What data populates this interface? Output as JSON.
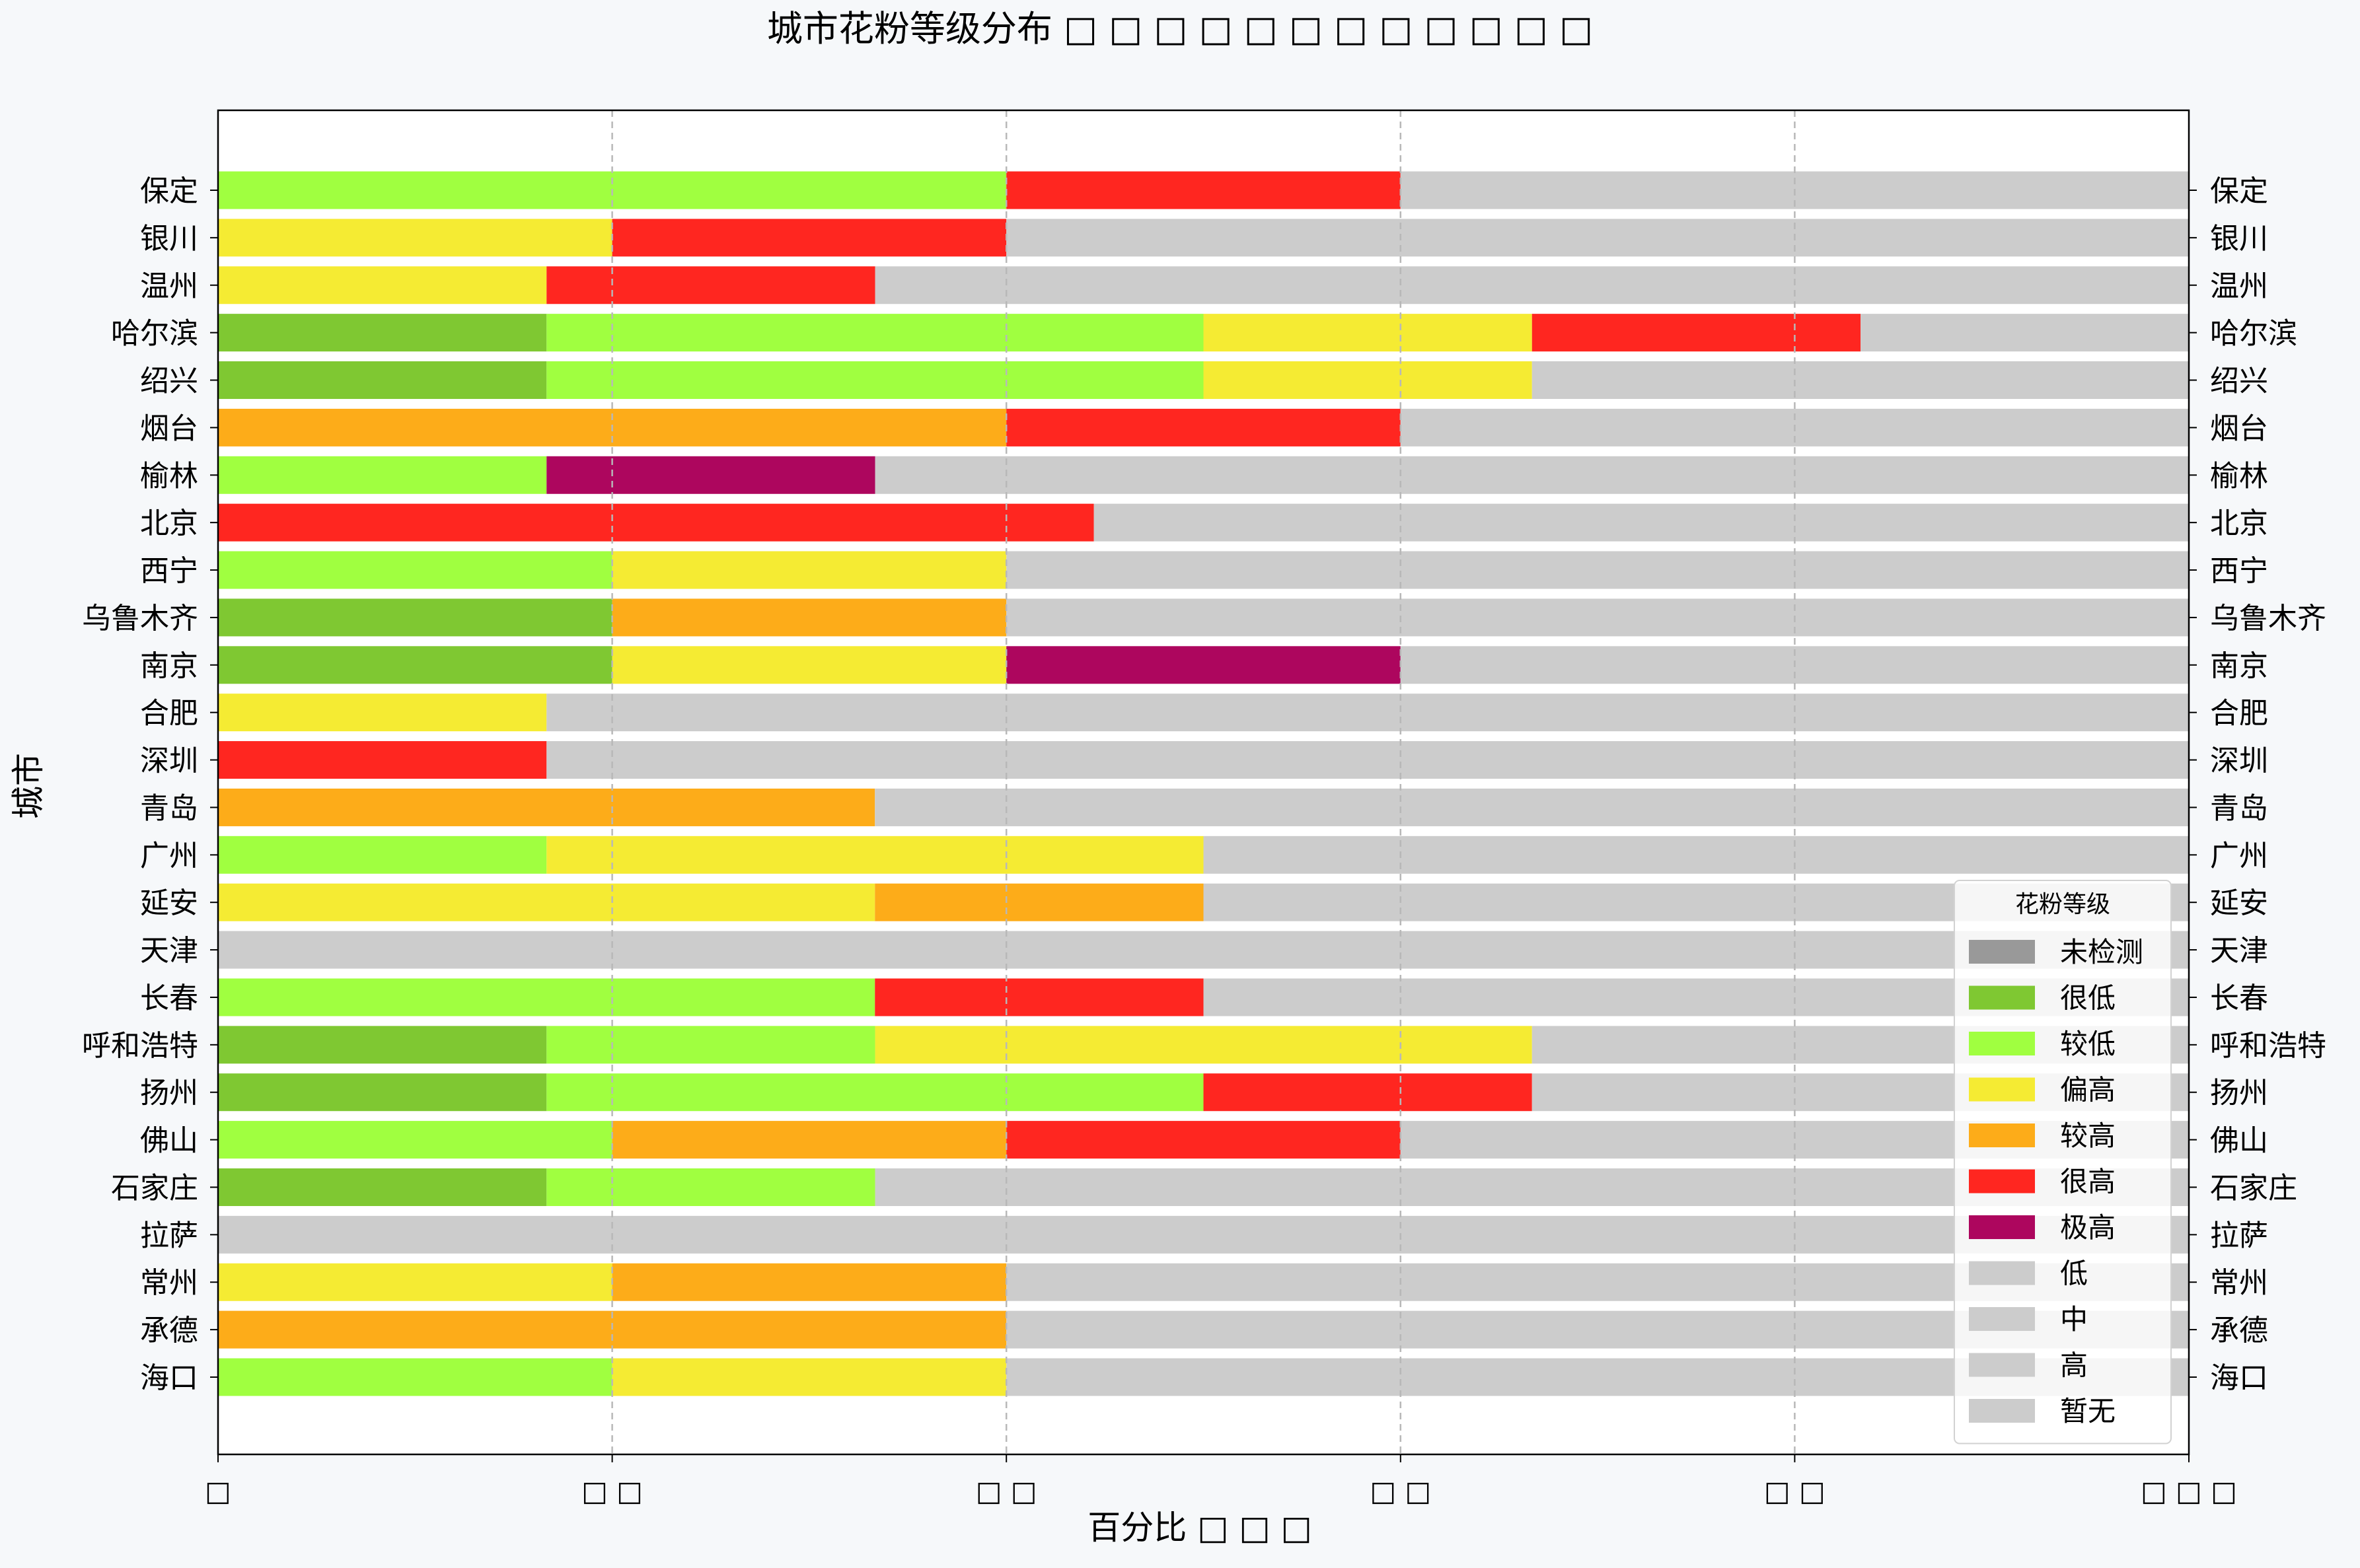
{
  "chart_data": {
    "type": "bar",
    "orientation": "horizontal",
    "stacked": true,
    "title": "城市花粉等级分布 □ □ □ □ □ □ □ □ □ □ □ □",
    "xlabel": "百分比 □ □ □",
    "ylabel": "城市",
    "xlim": [
      0,
      100
    ],
    "xticks": [
      0,
      20,
      40,
      60,
      80,
      100
    ],
    "xtick_labels": [
      "□",
      "□ □",
      "□ □",
      "□ □",
      "□ □",
      "□ □ □"
    ],
    "grid": "x-dashed",
    "legend_position": "lower-right",
    "legend": {
      "title": "花粉等级",
      "entries": [
        {
          "label": "未检测",
          "color": "#999999"
        },
        {
          "label": "很低",
          "color": "#7fc832"
        },
        {
          "label": "较低",
          "color": "#a0ff40"
        },
        {
          "label": "偏高",
          "color": "#f5eb33"
        },
        {
          "label": "较高",
          "color": "#fdac19"
        },
        {
          "label": "很高",
          "color": "#ff2620"
        },
        {
          "label": "极高",
          "color": "#ad065e"
        },
        {
          "label": "低",
          "color": "#cccccc"
        },
        {
          "label": "中",
          "color": "#cccccc"
        },
        {
          "label": "高",
          "color": "#cccccc"
        },
        {
          "label": "暂无",
          "color": "#cccccc"
        }
      ]
    },
    "categories": [
      "保定",
      "银川",
      "温州",
      "哈尔滨",
      "绍兴",
      "烟台",
      "榆林",
      "北京",
      "西宁",
      "乌鲁木齐",
      "南京",
      "合肥",
      "深圳",
      "青岛",
      "广州",
      "延安",
      "天津",
      "长春",
      "呼和浩特",
      "扬州",
      "佛山",
      "石家庄",
      "拉萨",
      "常州",
      "承德",
      "海口"
    ],
    "bars": [
      {
        "city": "保定",
        "segments": [
          {
            "level": "较低",
            "value": 40
          },
          {
            "level": "很高",
            "value": 20
          },
          {
            "level": "暂无",
            "value": 40
          }
        ]
      },
      {
        "city": "银川",
        "segments": [
          {
            "level": "偏高",
            "value": 20
          },
          {
            "level": "很高",
            "value": 20
          },
          {
            "level": "暂无",
            "value": 60
          }
        ]
      },
      {
        "city": "温州",
        "segments": [
          {
            "level": "偏高",
            "value": 16.67
          },
          {
            "level": "很高",
            "value": 16.67
          },
          {
            "level": "暂无",
            "value": 66.66
          }
        ]
      },
      {
        "city": "哈尔滨",
        "segments": [
          {
            "level": "很低",
            "value": 16.67
          },
          {
            "level": "较低",
            "value": 33.33
          },
          {
            "level": "偏高",
            "value": 16.67
          },
          {
            "level": "很高",
            "value": 16.67
          },
          {
            "level": "暂无",
            "value": 16.66
          }
        ]
      },
      {
        "city": "绍兴",
        "segments": [
          {
            "level": "很低",
            "value": 16.67
          },
          {
            "level": "较低",
            "value": 33.33
          },
          {
            "level": "偏高",
            "value": 16.67
          },
          {
            "level": "暂无",
            "value": 33.33
          }
        ]
      },
      {
        "city": "烟台",
        "segments": [
          {
            "level": "较高",
            "value": 40
          },
          {
            "level": "很高",
            "value": 20
          },
          {
            "level": "暂无",
            "value": 40
          }
        ]
      },
      {
        "city": "榆林",
        "segments": [
          {
            "level": "较低",
            "value": 16.67
          },
          {
            "level": "极高",
            "value": 16.67
          },
          {
            "level": "暂无",
            "value": 66.66
          }
        ]
      },
      {
        "city": "北京",
        "segments": [
          {
            "level": "很高",
            "value": 44.44
          },
          {
            "level": "暂无",
            "value": 55.56
          }
        ]
      },
      {
        "city": "西宁",
        "segments": [
          {
            "level": "较低",
            "value": 20
          },
          {
            "level": "偏高",
            "value": 20
          },
          {
            "level": "暂无",
            "value": 60
          }
        ]
      },
      {
        "city": "乌鲁木齐",
        "segments": [
          {
            "level": "很低",
            "value": 20
          },
          {
            "level": "较高",
            "value": 20
          },
          {
            "level": "暂无",
            "value": 60
          }
        ]
      },
      {
        "city": "南京",
        "segments": [
          {
            "level": "很低",
            "value": 20
          },
          {
            "level": "偏高",
            "value": 20
          },
          {
            "level": "极高",
            "value": 20
          },
          {
            "level": "暂无",
            "value": 40
          }
        ]
      },
      {
        "city": "合肥",
        "segments": [
          {
            "level": "偏高",
            "value": 16.67
          },
          {
            "level": "暂无",
            "value": 83.33
          }
        ]
      },
      {
        "city": "深圳",
        "segments": [
          {
            "level": "很高",
            "value": 16.67
          },
          {
            "level": "暂无",
            "value": 83.33
          }
        ]
      },
      {
        "city": "青岛",
        "segments": [
          {
            "level": "较高",
            "value": 33.33
          },
          {
            "level": "暂无",
            "value": 66.67
          }
        ]
      },
      {
        "city": "广州",
        "segments": [
          {
            "level": "较低",
            "value": 16.67
          },
          {
            "level": "偏高",
            "value": 33.33
          },
          {
            "level": "暂无",
            "value": 50
          }
        ]
      },
      {
        "city": "延安",
        "segments": [
          {
            "level": "偏高",
            "value": 33.33
          },
          {
            "level": "较高",
            "value": 16.67
          },
          {
            "level": "暂无",
            "value": 50
          }
        ]
      },
      {
        "city": "天津",
        "segments": [
          {
            "level": "暂无",
            "value": 100
          }
        ]
      },
      {
        "city": "长春",
        "segments": [
          {
            "level": "较低",
            "value": 33.33
          },
          {
            "level": "很高",
            "value": 16.67
          },
          {
            "level": "暂无",
            "value": 50
          }
        ]
      },
      {
        "city": "呼和浩特",
        "segments": [
          {
            "level": "很低",
            "value": 16.67
          },
          {
            "level": "较低",
            "value": 16.67
          },
          {
            "level": "偏高",
            "value": 33.33
          },
          {
            "level": "暂无",
            "value": 33.33
          }
        ]
      },
      {
        "city": "扬州",
        "segments": [
          {
            "level": "很低",
            "value": 16.67
          },
          {
            "level": "较低",
            "value": 33.33
          },
          {
            "level": "很高",
            "value": 16.67
          },
          {
            "level": "暂无",
            "value": 33.33
          }
        ]
      },
      {
        "city": "佛山",
        "segments": [
          {
            "level": "较低",
            "value": 20
          },
          {
            "level": "较高",
            "value": 20
          },
          {
            "level": "很高",
            "value": 20
          },
          {
            "level": "暂无",
            "value": 40
          }
        ]
      },
      {
        "city": "石家庄",
        "segments": [
          {
            "level": "很低",
            "value": 16.67
          },
          {
            "level": "较低",
            "value": 16.67
          },
          {
            "level": "暂无",
            "value": 66.66
          }
        ]
      },
      {
        "city": "拉萨",
        "segments": [
          {
            "level": "暂无",
            "value": 100
          }
        ]
      },
      {
        "city": "常州",
        "segments": [
          {
            "level": "偏高",
            "value": 20
          },
          {
            "level": "较高",
            "value": 20
          },
          {
            "level": "暂无",
            "value": 60
          }
        ]
      },
      {
        "city": "承德",
        "segments": [
          {
            "level": "较高",
            "value": 40
          },
          {
            "level": "暂无",
            "value": 60
          }
        ]
      },
      {
        "city": "海口",
        "segments": [
          {
            "level": "较低",
            "value": 20
          },
          {
            "level": "偏高",
            "value": 20
          },
          {
            "level": "暂无",
            "value": 60
          }
        ]
      }
    ]
  }
}
